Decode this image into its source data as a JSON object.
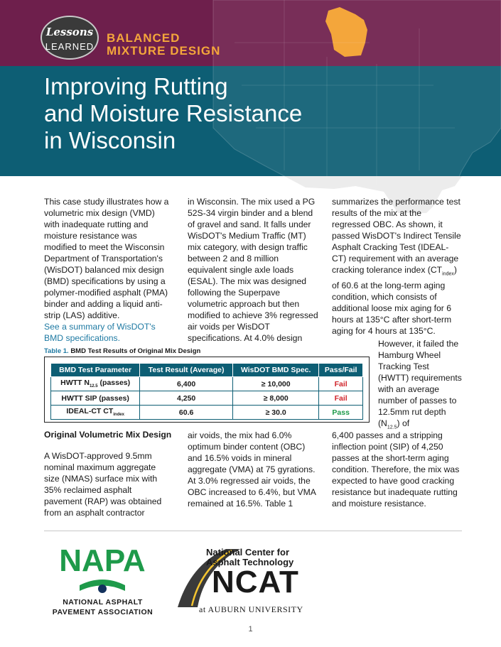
{
  "header": {
    "badge_line1": "Lessons",
    "badge_line2": "LEARNED",
    "kicker_line1": "BALANCED",
    "kicker_line2": "MIXTURE DESIGN",
    "title_line1": "Improving Rutting",
    "title_line2": "and Moisture Resistance",
    "title_line3": "in Wisconsin",
    "colors": {
      "top_band": "#6e1f4c",
      "bottom_band": "#0d5e74",
      "accent": "#f4a63b",
      "wisconsin": "#f4a63b"
    }
  },
  "body": {
    "col1_text": "This case study illustrates how a volumetric mix design (VMD) with inadequate rutting and moisture resistance was modified to meet the Wisconsin Department of Transportation's (WisDOT) balanced mix design (BMD) specifications by using a polymer-modified asphalt (PMA) binder and adding a liquid anti-strip (LAS) additive.",
    "col1_link": "See a summary of WisDOT's BMD specifications.",
    "col2_text": "in Wisconsin. The mix used a PG 52S-34 virgin binder and a blend of gravel and sand. It falls under WisDOT's Medium Traffic (MT) mix category, with design traffic between 2 and 8 million equivalent single axle loads (ESAL). The mix was designed following the Superpave volumetric approach but then modified to achieve 3% regressed air voids per WisDOT specifications. At 4.0% design",
    "col3_text_a": "summarizes the performance test results of the mix at the regressed OBC. As shown, it passed WisDOT's Indirect Tensile Asphalt Cracking Test (IDEAL-CT) requirement with an average cracking tolerance index (CT",
    "col3_sub_a": "index",
    "col3_text_b": ") of 60.6 at the long-term aging condition, which consists of additional loose mix aging for 6 hours at 135°C after short-term aging for 4 hours at 135°C.",
    "col3b_text_a": "However, it failed the Hamburg Wheel Tracking Test (HWTT) requirements with an average number of passes to 12.5mm rut depth (N",
    "col3b_sub": "12.5",
    "col3b_text_b": ") of",
    "col3c_text": "6,400 passes and a stripping inflection point (SIP) of 4,250 passes at the short-term aging condition. Therefore, the mix was expected to have good cracking resistance but inadequate rutting and moisture resistance."
  },
  "table": {
    "caption_num": "Table 1.",
    "caption_text": "BMD Test Results of Original Mix Design",
    "headers": [
      "BMD Test Parameter",
      "Test Result (Average)",
      "WisDOT BMD Spec.",
      "Pass/Fail"
    ],
    "rows": [
      {
        "param": "HWTT N",
        "sub": "12.5",
        "param_tail": " (passes)",
        "result": "6,400",
        "spec": "≥ 10,000",
        "status": "Fail"
      },
      {
        "param": "HWTT SIP (passes)",
        "sub": "",
        "param_tail": "",
        "result": "4,250",
        "spec": "≥ 8,000",
        "status": "Fail"
      },
      {
        "param": "IDEAL-CT CT",
        "sub": "index",
        "param_tail": "",
        "result": "60.6",
        "spec": "≥ 30.0",
        "status": "Pass"
      }
    ]
  },
  "section2": {
    "heading": "Original Volumetric Mix Design",
    "col1_text": "A WisDOT-approved 9.5mm nominal maximum aggregate size (NMAS) surface mix with 35% reclaimed asphalt pavement (RAP) was obtained from an asphalt contractor",
    "col2_text": "air voids, the mix had 6.0% optimum binder content (OBC) and 16.5% voids in mineral aggregate (VMA) at 75 gyrations. At 3.0% regressed air voids, the OBC increased to 6.4%, but VMA remained at 16.5%. Table 1"
  },
  "footer": {
    "napa_logo": "NAPA",
    "napa_line1": "NATIONAL ASPHALT",
    "napa_line2": "PAVEMENT ASSOCIATION",
    "ncat_line1": "National Center for",
    "ncat_line2": "Asphalt Technology",
    "ncat_logo": "NCAT",
    "ncat_au": "at AUBURN UNIVERSITY",
    "page_number": "1",
    "colors": {
      "napa_green": "#1e9a4a",
      "napa_navy": "#13315c"
    }
  }
}
